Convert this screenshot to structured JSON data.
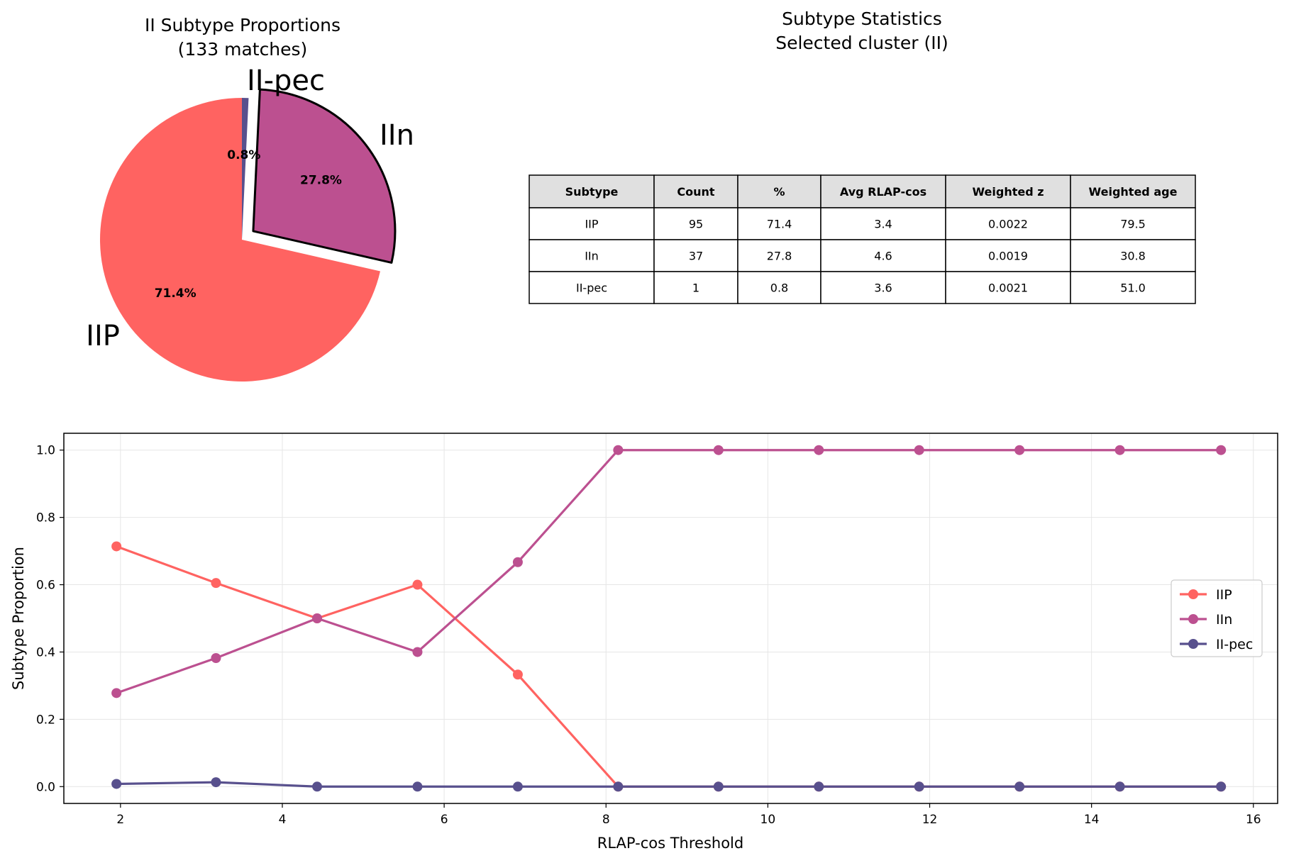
{
  "chart_data": [
    {
      "type": "pie",
      "title": "II Subtype Proportions",
      "subtitle": "(133 matches)",
      "categories": [
        "IIP",
        "IIn",
        "II-pec"
      ],
      "values": [
        95,
        37,
        1
      ],
      "percent_labels": [
        "71.4%",
        "27.8%",
        "0.8%"
      ],
      "colors": [
        "#ff6361",
        "#bc5090",
        "#58508d"
      ],
      "exploded": "IIn"
    },
    {
      "type": "table",
      "title": "Subtype Statistics",
      "subtitle": "Selected cluster (II)",
      "columns": [
        "Subtype",
        "Count",
        "%",
        "Avg RLAP-cos",
        "Weighted z",
        "Weighted age"
      ],
      "rows": [
        [
          "IIP",
          "95",
          "71.4",
          "3.4",
          "0.0022",
          "79.5"
        ],
        [
          "IIn",
          "37",
          "27.8",
          "4.6",
          "0.0019",
          "30.8"
        ],
        [
          "II-pec",
          "1",
          "0.8",
          "3.6",
          "0.0021",
          "51.0"
        ]
      ],
      "header_background": "#e0e0e0"
    },
    {
      "type": "line",
      "xlabel": "RLAP-cos Threshold",
      "ylabel": "Subtype Proportion",
      "x": [
        1.95,
        3.18,
        4.43,
        5.67,
        6.91,
        8.15,
        9.39,
        10.63,
        11.87,
        13.11,
        14.35,
        15.6
      ],
      "xlim": [
        1.3,
        16.3
      ],
      "ylim": [
        -0.05,
        1.05
      ],
      "xticks": [
        2,
        4,
        6,
        8,
        10,
        12,
        14,
        16
      ],
      "yticks": [
        "0.0",
        "0.2",
        "0.4",
        "0.6",
        "0.8",
        "1.0"
      ],
      "grid": true,
      "legend_position": "center-right",
      "series": [
        {
          "name": "IIP",
          "color": "#ff6361",
          "values": [
            0.714,
            0.605,
            0.5,
            0.6,
            0.333,
            0,
            0,
            0,
            0,
            0,
            0,
            0
          ]
        },
        {
          "name": "IIn",
          "color": "#bc5090",
          "values": [
            0.278,
            0.382,
            0.5,
            0.4,
            0.667,
            1,
            1,
            1,
            1,
            1,
            1,
            1
          ]
        },
        {
          "name": "II-pec",
          "color": "#58508d",
          "values": [
            0.008,
            0.013,
            0,
            0,
            0,
            0,
            0,
            0,
            0,
            0,
            0,
            0
          ]
        }
      ]
    }
  ]
}
